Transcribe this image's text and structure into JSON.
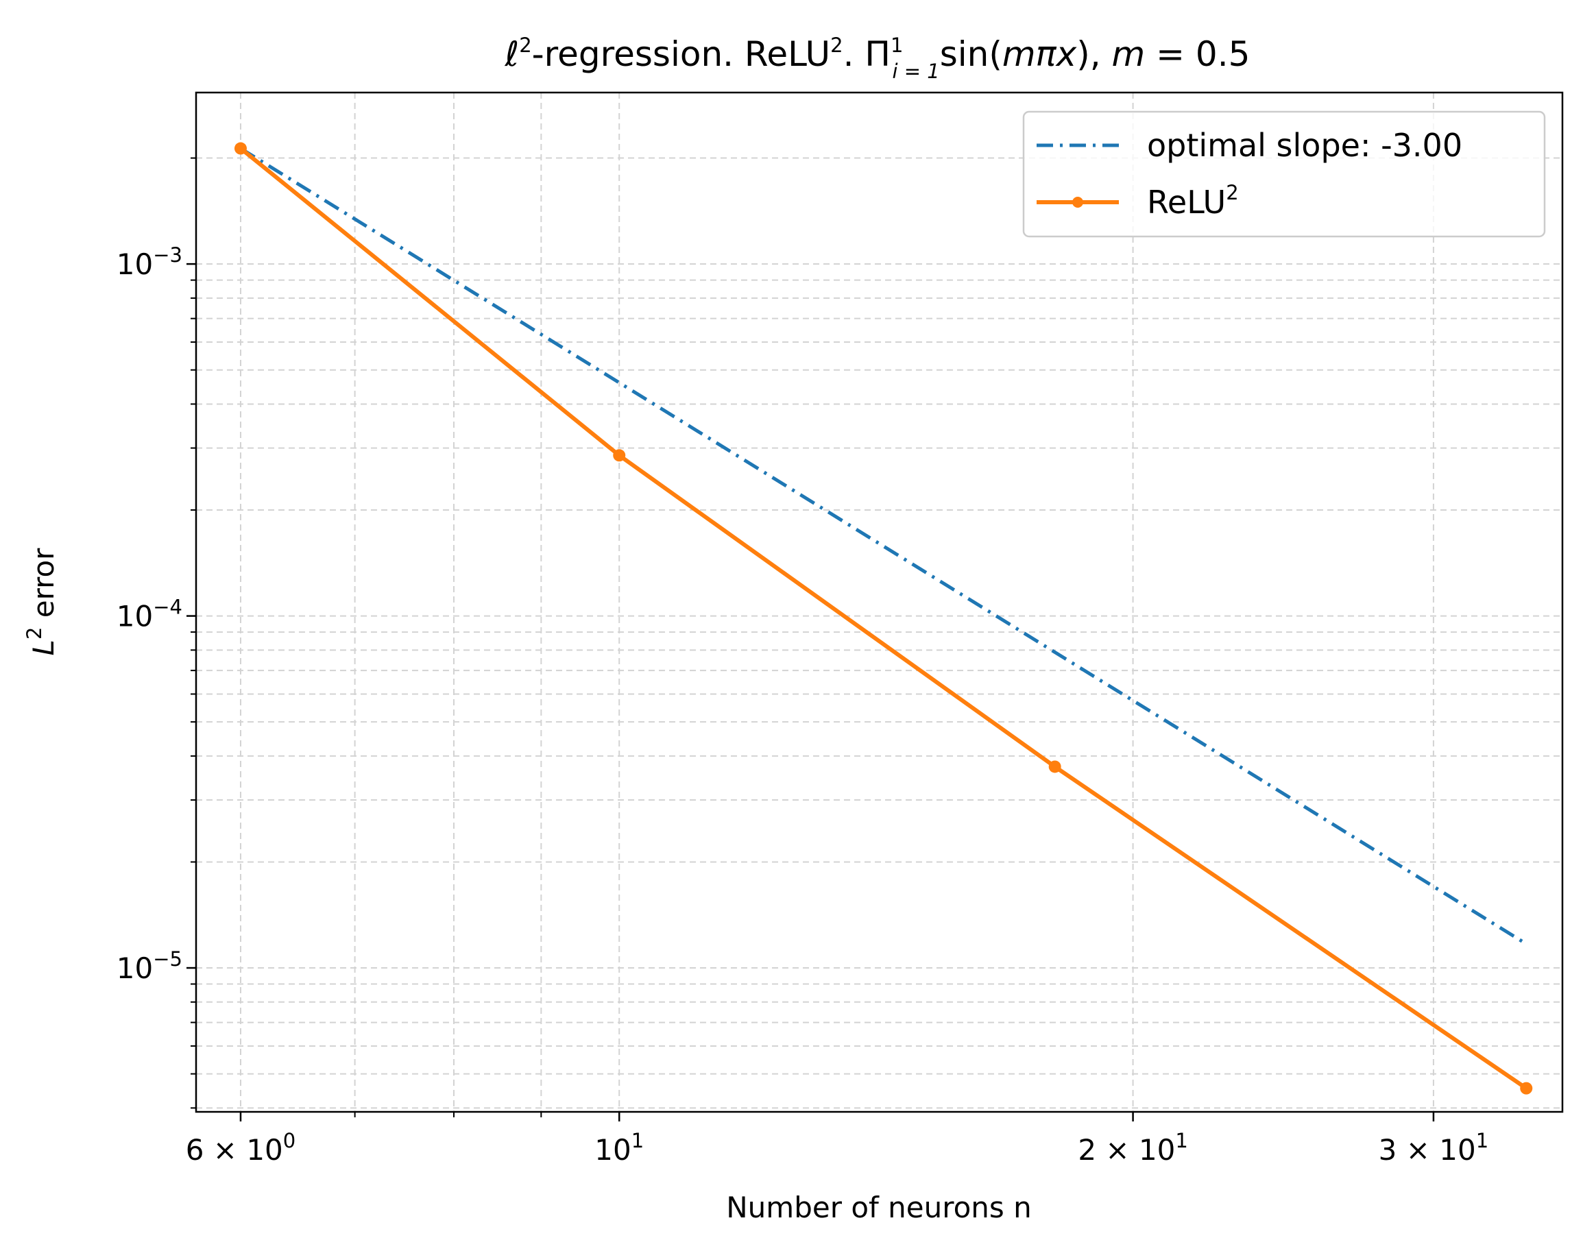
{
  "colors": {
    "optimal": "#1f77b4",
    "relu": "#ff7f0e",
    "grid": "#d3d3d3",
    "axes": "#000000",
    "background": "#ffffff",
    "legend_border": "#cccccc"
  },
  "chart_data": {
    "type": "line",
    "xscale": "log",
    "yscale": "log",
    "title": {
      "prefix": "ℓ",
      "prefix_sup": "2",
      "part1": "-regression. ReLU",
      "part1_sup": "2",
      "part2": ". Π",
      "prod_sup": "1",
      "prod_sub": "i = 1",
      "func_pre": "sin(",
      "func_var": "mπx",
      "func_post": "), ",
      "param_var": "m",
      "param_eq": " = 0.5"
    },
    "xlabel": "Number of neurons n",
    "ylabel": {
      "var": "L",
      "sup": "2",
      "rest": " error"
    },
    "xlim": [
      5.65,
      35.7
    ],
    "ylim": [
      3.9e-06,
      0.00307
    ],
    "x_ticks_major": [
      {
        "value": 6,
        "mantissa": "6",
        "base": "10",
        "exp": "0"
      },
      {
        "value": 10,
        "mantissa": "",
        "base": "10",
        "exp": "1"
      },
      {
        "value": 20,
        "mantissa": "2",
        "base": "10",
        "exp": "1"
      },
      {
        "value": 30,
        "mantissa": "3",
        "base": "10",
        "exp": "1"
      }
    ],
    "x_ticks_minor": [
      7,
      8,
      9
    ],
    "y_ticks_major": [
      {
        "value": 0.001,
        "base": "10",
        "exp": "−3"
      },
      {
        "value": 0.0001,
        "base": "10",
        "exp": "−4"
      },
      {
        "value": 1e-05,
        "base": "10",
        "exp": "−5"
      }
    ],
    "y_ticks_minor": [
      4e-06,
      5e-06,
      6e-06,
      7e-06,
      8e-06,
      9e-06,
      2e-05,
      3e-05,
      4e-05,
      5e-05,
      6e-05,
      7e-05,
      8e-05,
      9e-05,
      0.0002,
      0.0003,
      0.0004,
      0.0005,
      0.0006,
      0.0007,
      0.0008,
      0.0009,
      0.002
    ],
    "grid": true,
    "legend": {
      "position": "upper right",
      "entries": [
        {
          "label": "optimal slope: -3.00",
          "label_sup": "",
          "series": "optimal"
        },
        {
          "label": "ReLU",
          "label_sup": "2",
          "series": "relu"
        }
      ]
    },
    "series": [
      {
        "name": "optimal slope: -3.00",
        "key": "optimal",
        "style": "dashdot",
        "marker": false,
        "x": [
          6,
          34
        ],
        "y": [
          0.00213,
          1.17e-05
        ]
      },
      {
        "name": "ReLU2",
        "key": "relu",
        "style": "solid",
        "marker": true,
        "x": [
          6,
          10,
          18,
          34
        ],
        "y": [
          0.00213,
          0.000286,
          3.73e-05,
          4.55e-06
        ]
      }
    ]
  }
}
